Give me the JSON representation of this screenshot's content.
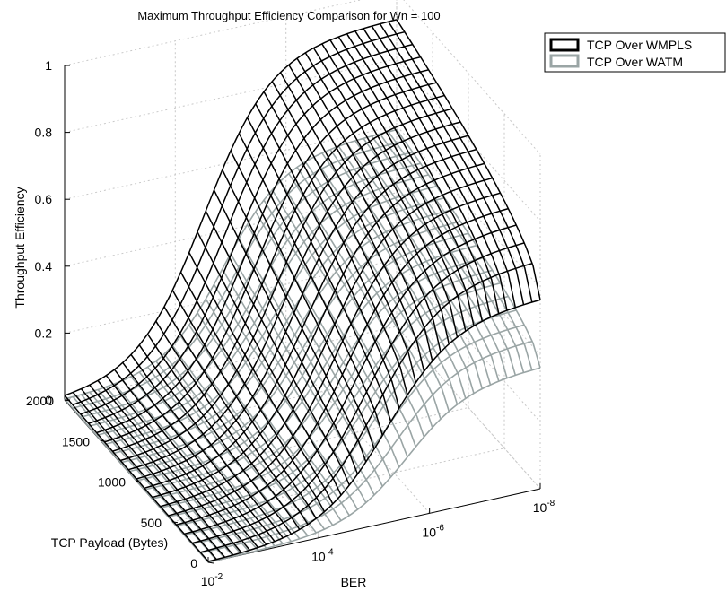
{
  "chart_data": {
    "type": "surface",
    "title": "Maximum Throughput Efficiency Comparison for Wn = 100",
    "zlabel": "Throughput Efficiency",
    "xlabel": "BER",
    "ylabel": "TCP Payload (Bytes)",
    "zlim": [
      0,
      1
    ],
    "z_ticks": [
      "0",
      "0.2",
      "0.4",
      "0.6",
      "0.8",
      "1"
    ],
    "z_tick_values": [
      0,
      0.2,
      0.4,
      0.6,
      0.8,
      1
    ],
    "payload_ticks": [
      "0",
      "500",
      "1000",
      "1500",
      "2000"
    ],
    "payload_tick_values": [
      0,
      500,
      1000,
      1500,
      2000
    ],
    "ber_ticks": [
      {
        "base": "10",
        "exp": "-2",
        "value": 0.01
      },
      {
        "base": "10",
        "exp": "-4",
        "value": 0.0001
      },
      {
        "base": "10",
        "exp": "-6",
        "value": 1e-06
      },
      {
        "base": "10",
        "exp": "-8",
        "value": 1e-08
      }
    ],
    "ber_scale": "log",
    "grid": true,
    "legend_position": "top-right",
    "series": [
      {
        "name": "TCP Over WMPLS",
        "color": "#000000",
        "max_efficiency": 0.92,
        "efficiency_at_ber_1e-8_payload_0": 0.58
      },
      {
        "name": "TCP Over WATM",
        "color": "#9aa5a5",
        "max_efficiency": 0.59,
        "efficiency_at_ber_1e-8_payload_0": 0.54
      }
    ]
  }
}
